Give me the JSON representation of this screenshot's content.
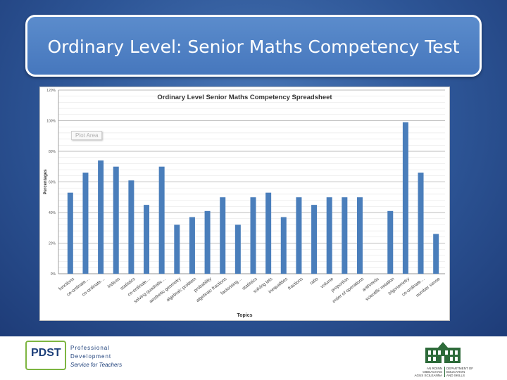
{
  "slide": {
    "title": "Ordinary Level: Senior Maths Competency Test"
  },
  "chart_data": {
    "type": "bar",
    "title": "Ordinary Level Senior Maths Competency Spreadsheet",
    "xlabel": "Topics",
    "ylabel": "Percentages",
    "ylim": [
      0,
      120
    ],
    "ytick_values": [
      0,
      20,
      40,
      60,
      80,
      100,
      120
    ],
    "ytick_labels": [
      "0%",
      "20%",
      "40%",
      "60%",
      "80%",
      "100%",
      "120%"
    ],
    "grid": true,
    "bar_color": "#4a7ebb",
    "categories": [
      "functions",
      "co-ordinate…",
      "co-ordinate…",
      "indices",
      "statistics",
      "co-ordinate…",
      "solving quadratic…",
      "aesthetic geometry",
      "algebraic problem",
      "probability",
      "algebraic fractions",
      "factorising…",
      "statistics",
      "solving lots",
      "inequalities",
      "fractions",
      "ratio",
      "volume",
      "proportion",
      "order of operations",
      "arithmetic",
      "scientific notation",
      "trigonometry",
      "co-ordinate…",
      "number sense"
    ],
    "values": [
      53,
      66,
      74,
      70,
      61,
      45,
      70,
      32,
      37,
      41,
      50,
      32,
      50,
      53,
      37,
      50,
      45,
      50,
      50,
      50,
      0,
      41,
      99,
      66,
      26
    ],
    "annotation": "Plot Area"
  },
  "footer": {
    "pdst_acronym": "PDST",
    "pdst_line1": "Professional",
    "pdst_line2": "Development",
    "pdst_line3": "Service for Teachers",
    "dept_line1a": "AN ROINN",
    "dept_line1b": "OIDEACHAIS",
    "dept_line1c": "AGUS SCILEANNA",
    "dept_line2a": "DEPARTMENT OF",
    "dept_line2b": "EDUCATION",
    "dept_line2c": "AND SKILLS"
  },
  "colors": {
    "title_box": "#4a7cc1",
    "pdst_green": "#7db541",
    "pdst_blue": "#1d3f7a"
  }
}
